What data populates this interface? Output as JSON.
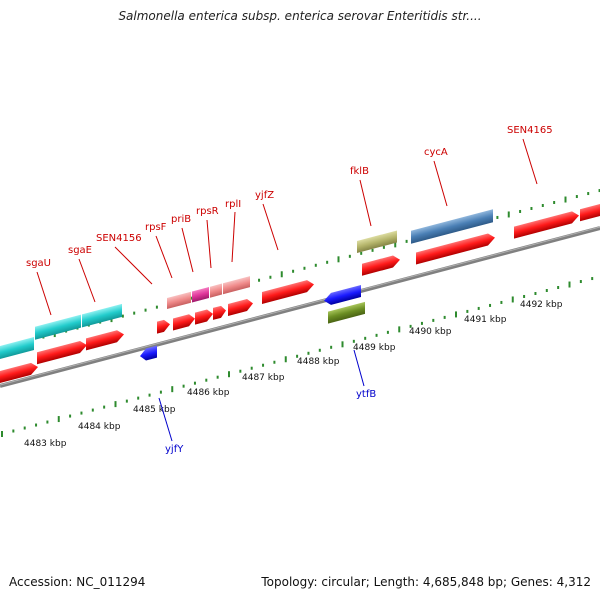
{
  "title": "Salmonella enterica subsp. enterica serovar Enteritidis str....",
  "accession_label": "Accession:",
  "accession": "NC_011294",
  "topology_text": "Topology: circular; Length: 4,685,848 bp; Genes: 4,312",
  "kbp_labels": [
    "4483 kbp",
    "4484 kbp",
    "4485 kbp",
    "4486 kbp",
    "4487 kbp",
    "4488 kbp",
    "4489 kbp",
    "4490 kbp",
    "4491 kbp",
    "4492 kbp"
  ],
  "forward_gene_labels": [
    "sgaU",
    "sgaE",
    "SEN4156",
    "rpsF",
    "priB",
    "rpsR",
    "rplI",
    "yjfZ",
    "fklB",
    "cycA",
    "SEN4165"
  ],
  "reverse_gene_labels": [
    "yjfY",
    "ytfB"
  ],
  "colors": {
    "forward_gene": "#ff1a1a",
    "reverse_gene": "#1a1aff",
    "backbone": "#808080",
    "tick": "#2e8b2e",
    "forward_label": "#cc0000",
    "reverse_label": "#0000cc",
    "feature_cyan": "#22cccc",
    "feature_pink": "#f08a8a",
    "feature_magenta": "#e0359a",
    "feature_olive": "#b5b56b",
    "feature_steel": "#4a7fb5",
    "feature_green": "#6b8e23"
  }
}
